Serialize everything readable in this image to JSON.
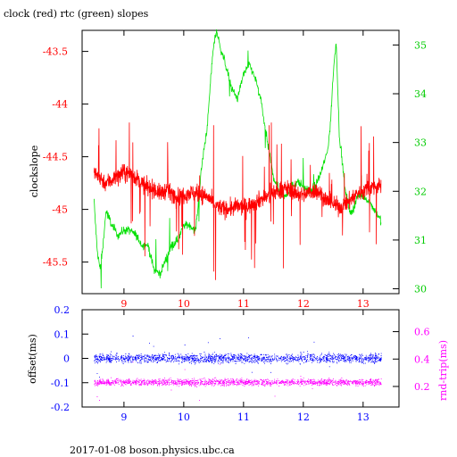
{
  "colors": {
    "clock": "#ff0000",
    "rtc": "#00e000",
    "offset": "#0000ff",
    "roundtrip": "#ff00ff",
    "axes": "#000000"
  },
  "footer": "2017-01-08 boson.physics.ubc.ca",
  "chart_data": [
    {
      "type": "line",
      "title": "clock (red) rtc (green) slopes",
      "ylabel": "clockslope",
      "xlim": [
        8.3,
        13.6
      ],
      "ylim": [
        -45.8,
        -43.3
      ],
      "y2lim": [
        29.9,
        35.3
      ],
      "x_ticks": [
        9,
        10,
        11,
        12,
        13
      ],
      "x_tick_labels": [
        "9",
        "10",
        "11",
        "12",
        "13"
      ],
      "y_ticks": [
        -43.5,
        -44,
        -44.5,
        -45,
        -45.5
      ],
      "y_tick_labels": [
        "-43.5",
        "-44",
        "-44.5",
        "-45",
        "-45.5"
      ],
      "y2_ticks": [
        35,
        34,
        33,
        32,
        31,
        30
      ],
      "y2_tick_labels": [
        "35",
        "34",
        "33",
        "32",
        "31",
        "30"
      ],
      "grid": false,
      "series": [
        {
          "axis": "left",
          "color": "#ff0000",
          "x": [
            8.5,
            8.6,
            8.7,
            8.8,
            8.9,
            9.0,
            9.1,
            9.2,
            9.3,
            9.4,
            9.5,
            9.6,
            9.7,
            9.8,
            9.9,
            10.0,
            10.1,
            10.2,
            10.3,
            10.4,
            10.5,
            10.6,
            10.7,
            10.8,
            10.9,
            11.0,
            11.1,
            11.2,
            11.3,
            11.4,
            11.5,
            11.6,
            11.7,
            11.8,
            11.9,
            12.0,
            12.1,
            12.2,
            12.3,
            12.4,
            12.5,
            12.6,
            12.7,
            12.8,
            12.9,
            13.0,
            13.1,
            13.2,
            13.3
          ],
          "y": [
            -44.65,
            -44.7,
            -44.75,
            -44.72,
            -44.68,
            -44.65,
            -44.66,
            -44.7,
            -44.75,
            -44.8,
            -44.8,
            -44.85,
            -44.82,
            -44.85,
            -44.88,
            -44.86,
            -44.84,
            -44.85,
            -44.86,
            -44.88,
            -44.95,
            -44.98,
            -45.0,
            -44.99,
            -44.97,
            -44.98,
            -44.96,
            -44.93,
            -44.9,
            -44.88,
            -44.84,
            -44.82,
            -44.8,
            -44.82,
            -44.85,
            -44.86,
            -44.84,
            -44.82,
            -44.85,
            -44.92,
            -44.95,
            -44.98,
            -44.96,
            -44.9,
            -44.85,
            -44.82,
            -44.8,
            -44.78,
            -44.78
          ],
          "spread": 0.14
        },
        {
          "axis": "right",
          "color": "#00e000",
          "x": [
            8.5,
            8.55,
            8.6,
            8.65,
            8.7,
            8.8,
            8.9,
            9.0,
            9.1,
            9.2,
            9.3,
            9.4,
            9.5,
            9.6,
            9.7,
            9.8,
            9.9,
            10.0,
            10.1,
            10.2,
            10.3,
            10.4,
            10.45,
            10.5,
            10.55,
            10.6,
            10.7,
            10.8,
            10.9,
            11.0,
            11.1,
            11.2,
            11.3,
            11.4,
            11.5,
            11.6,
            11.7,
            11.8,
            11.9,
            12.0,
            12.1,
            12.2,
            12.3,
            12.4,
            12.45,
            12.5,
            12.55,
            12.6,
            12.7,
            12.8,
            12.9,
            13.0,
            13.1,
            13.2,
            13.3
          ],
          "y": [
            31.8,
            30.8,
            30.4,
            30.9,
            31.6,
            31.3,
            31.1,
            31.2,
            31.2,
            31.1,
            30.9,
            30.9,
            30.4,
            30.3,
            30.6,
            30.9,
            31.0,
            31.3,
            31.3,
            31.2,
            32.5,
            33.4,
            34.3,
            35.0,
            35.3,
            35.0,
            34.6,
            34.1,
            33.9,
            34.4,
            34.6,
            34.3,
            33.8,
            33.0,
            32.3,
            32.0,
            31.9,
            32.1,
            32.2,
            32.1,
            32.0,
            32.1,
            32.4,
            32.8,
            33.3,
            34.4,
            35.1,
            33.2,
            32.0,
            31.5,
            31.9,
            31.9,
            31.8,
            31.6,
            31.4
          ],
          "spread": 0.15
        }
      ]
    },
    {
      "type": "scatter",
      "ylabel": "offset(ms)",
      "y2label": "rnd-trip(ms)",
      "xlim": [
        8.3,
        13.6
      ],
      "ylim": [
        -0.2,
        0.2
      ],
      "y2lim": [
        0.05,
        0.76
      ],
      "x_ticks": [
        9,
        10,
        11,
        12,
        13
      ],
      "x_tick_labels": [
        "9",
        "10",
        "11",
        "12",
        "13"
      ],
      "y_ticks": [
        0.2,
        0.1,
        0,
        -0.1,
        -0.2
      ],
      "y_tick_labels": [
        "0.2",
        "0.1",
        "0",
        "-0.1",
        "-0.2"
      ],
      "y2_ticks": [
        0.6,
        0.4,
        0.2
      ],
      "y2_tick_labels": [
        "0.6",
        "0.4",
        "0.2"
      ],
      "grid": false,
      "series": [
        {
          "axis": "left",
          "color": "#0000ff",
          "x_range": [
            8.5,
            13.3
          ],
          "center": 0.0,
          "spread": 0.02
        },
        {
          "axis": "right",
          "color": "#ff00ff",
          "x_range": [
            8.5,
            13.3
          ],
          "center": 0.23,
          "spread": 0.025
        }
      ]
    }
  ]
}
